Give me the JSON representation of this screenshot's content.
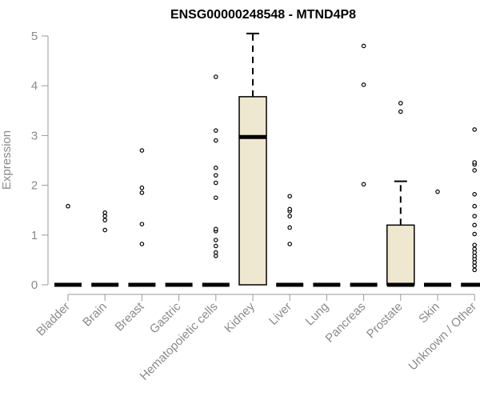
{
  "chart_data": {
    "type": "boxplot",
    "title": "ENSG00000248548 - MTND4P8",
    "xlabel": "",
    "ylabel": "Expression",
    "ylim": [
      0,
      5
    ],
    "yticks": [
      0,
      1,
      2,
      3,
      4,
      5
    ],
    "grid": false,
    "box_color": "#efe8d0",
    "categories": [
      "Bladder",
      "Brain",
      "Breast",
      "Gastric",
      "Hematopoietic cells",
      "Kidney",
      "Liver",
      "Lung",
      "Pancreas",
      "Prostate",
      "Skin",
      "Unknown / Other"
    ],
    "boxes": [
      {
        "category": "Bladder",
        "min": 0,
        "q1": 0,
        "median": 0,
        "q3": 0,
        "max": 0,
        "outliers": [
          1.58
        ]
      },
      {
        "category": "Brain",
        "min": 0,
        "q1": 0,
        "median": 0,
        "q3": 0,
        "max": 0,
        "outliers": [
          1.1,
          1.3,
          1.38,
          1.45
        ]
      },
      {
        "category": "Breast",
        "min": 0,
        "q1": 0,
        "median": 0,
        "q3": 0,
        "max": 0,
        "outliers": [
          0.82,
          1.22,
          1.85,
          1.95,
          2.7
        ]
      },
      {
        "category": "Gastric",
        "min": 0,
        "q1": 0,
        "median": 0,
        "q3": 0,
        "max": 0,
        "outliers": []
      },
      {
        "category": "Hematopoietic cells",
        "min": 0,
        "q1": 0,
        "median": 0,
        "q3": 0,
        "max": 0,
        "outliers": [
          0.58,
          0.65,
          0.78,
          0.9,
          1.08,
          1.12,
          1.75,
          2.05,
          2.2,
          2.35,
          2.9,
          3.1,
          4.18
        ]
      },
      {
        "category": "Kidney",
        "min": 0,
        "q1": 0,
        "median": 2.97,
        "q3": 3.78,
        "max": 5.05,
        "outliers": []
      },
      {
        "category": "Liver",
        "min": 0,
        "q1": 0,
        "median": 0,
        "q3": 0,
        "max": 0,
        "outliers": [
          0.82,
          1.15,
          1.38,
          1.48,
          1.52,
          1.78
        ]
      },
      {
        "category": "Lung",
        "min": 0,
        "q1": 0,
        "median": 0,
        "q3": 0,
        "max": 0,
        "outliers": []
      },
      {
        "category": "Pancreas",
        "min": 0,
        "q1": 0,
        "median": 0,
        "q3": 0,
        "max": 0,
        "outliers": [
          2.02,
          4.02,
          4.8
        ]
      },
      {
        "category": "Prostate",
        "min": 0,
        "q1": 0,
        "median": 0,
        "q3": 1.2,
        "max": 2.08,
        "outliers": [
          3.48,
          3.65
        ]
      },
      {
        "category": "Skin",
        "min": 0,
        "q1": 0,
        "median": 0,
        "q3": 0,
        "max": 0,
        "outliers": [
          1.87
        ]
      },
      {
        "category": "Unknown / Other",
        "min": 0,
        "q1": 0,
        "median": 0,
        "q3": 0,
        "max": 0,
        "outliers": [
          0.3,
          0.38,
          0.45,
          0.52,
          0.58,
          0.65,
          0.72,
          0.8,
          1.02,
          1.2,
          1.38,
          1.58,
          1.82,
          2.3,
          2.42,
          2.46,
          3.12
        ]
      }
    ]
  }
}
